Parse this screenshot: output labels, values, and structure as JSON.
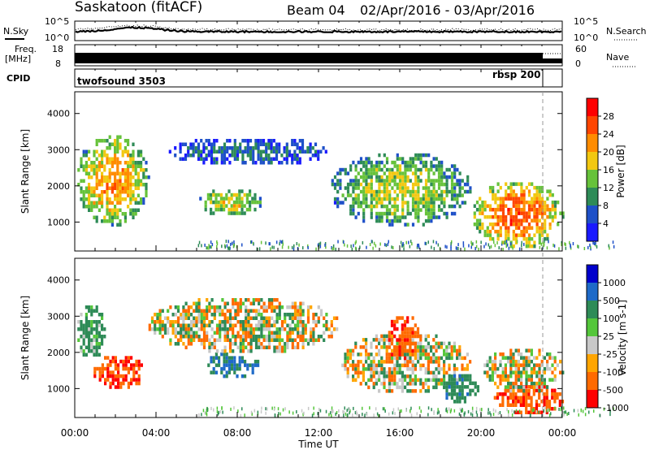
{
  "header": {
    "station": "Saskatoon (fitACF)",
    "beam": "Beam 04",
    "date_range": "02/Apr/2016 - 03/Apr/2016"
  },
  "noise_panel": {
    "left_label": "N.Sky",
    "right_label": "N.Search",
    "left_ticks": [
      "10^5",
      "10^0"
    ],
    "right_ticks": [
      "10^5",
      "10^0"
    ]
  },
  "freq_panel": {
    "left_label_line1": "Freq.",
    "left_label_line2": "[MHz]",
    "left_ticks": [
      "18",
      "8"
    ],
    "right_label": "Nave",
    "right_ticks": [
      "60",
      "0"
    ]
  },
  "cpid_panel": {
    "label": "CPID",
    "programs": [
      {
        "name": "twofsound 3503",
        "start_hour": 0,
        "end_hour": 22.9
      },
      {
        "name": "rbsp 200",
        "start_hour": 22.9,
        "end_hour": 24
      }
    ]
  },
  "x_axis": {
    "label": "Time UT",
    "tick_labels": [
      "00:00",
      "04:00",
      "08:00",
      "12:00",
      "16:00",
      "20:00",
      "00:00"
    ],
    "range_hours": [
      0,
      24
    ]
  },
  "power_panel": {
    "ylabel": "Slant Range [km]",
    "yticks": [
      "1000",
      "2000",
      "3000",
      "4000"
    ],
    "colorbar_label": "Power [dB]",
    "colorbar_ticks": [
      "4",
      "8",
      "12",
      "16",
      "20",
      "24",
      "28"
    ]
  },
  "velocity_panel": {
    "ylabel": "Slant Range [km]",
    "yticks": [
      "1000",
      "2000",
      "3000",
      "4000"
    ],
    "colorbar_label": "Velocity [m s-1]",
    "colorbar_ticks": [
      "1000",
      "500",
      "100",
      "25",
      "-25",
      "-100",
      "-500",
      "-1000"
    ]
  },
  "chart_data": [
    {
      "type": "heatmap",
      "title": "Power",
      "x_range_hours": [
        0,
        24
      ],
      "ylim": [
        200,
        4600
      ],
      "colorbar_range_db": [
        0,
        32
      ],
      "colors": [
        "#1a1aff",
        "#1e50c8",
        "#2e8b57",
        "#66c23a",
        "#f2c811",
        "#ff8c00",
        "#ff4500",
        "#ff0000"
      ],
      "echo_regions": [
        {
          "t_start": 0.0,
          "t_end": 3.6,
          "range_low": 900,
          "range_high": 3500,
          "core_power_db": 22
        },
        {
          "t_start": 6.0,
          "t_end": 9.2,
          "range_low": 1200,
          "range_high": 2000,
          "core_power_db": 18
        },
        {
          "t_start": 4.5,
          "t_end": 12.5,
          "range_low": 2600,
          "range_high": 3400,
          "core_power_db": 8
        },
        {
          "t_start": 12.5,
          "t_end": 19.5,
          "range_low": 900,
          "range_high": 3000,
          "core_power_db": 16
        },
        {
          "t_start": 19.5,
          "t_end": 24.0,
          "range_low": 300,
          "range_high": 2200,
          "core_power_db": 26
        }
      ]
    },
    {
      "type": "heatmap",
      "title": "Velocity",
      "x_range_hours": [
        0,
        24
      ],
      "ylim": [
        200,
        4600
      ],
      "colorbar_range_ms": [
        -1000,
        1000
      ],
      "colors": [
        "#0000cc",
        "#1e6ac8",
        "#2e8b57",
        "#54c63a",
        "#c8c8c8",
        "#ffa500",
        "#ff6a00",
        "#ff0000"
      ],
      "echo_regions": [
        {
          "t_start": 0.0,
          "t_end": 1.5,
          "range_low": 1800,
          "range_high": 3400,
          "velocity": 120
        },
        {
          "t_start": 0.8,
          "t_end": 3.4,
          "range_low": 1000,
          "range_high": 2000,
          "velocity": -300
        },
        {
          "t_start": 6.4,
          "t_end": 9.0,
          "range_low": 1300,
          "range_high": 2100,
          "velocity": 300
        },
        {
          "t_start": 3.5,
          "t_end": 13.0,
          "range_low": 2000,
          "range_high": 3600,
          "velocity": 0
        },
        {
          "t_start": 13.0,
          "t_end": 19.5,
          "range_low": 900,
          "range_high": 2600,
          "velocity": 0
        },
        {
          "t_start": 15.3,
          "t_end": 17.0,
          "range_low": 1800,
          "range_high": 3100,
          "velocity": -250
        },
        {
          "t_start": 18.0,
          "t_end": 19.8,
          "range_low": 600,
          "range_high": 1500,
          "velocity": 200
        },
        {
          "t_start": 20.5,
          "t_end": 24.0,
          "range_low": 300,
          "range_high": 1200,
          "velocity": -250
        },
        {
          "t_start": 20.0,
          "t_end": 24.0,
          "range_low": 900,
          "range_high": 2200,
          "velocity": 0
        }
      ]
    }
  ]
}
